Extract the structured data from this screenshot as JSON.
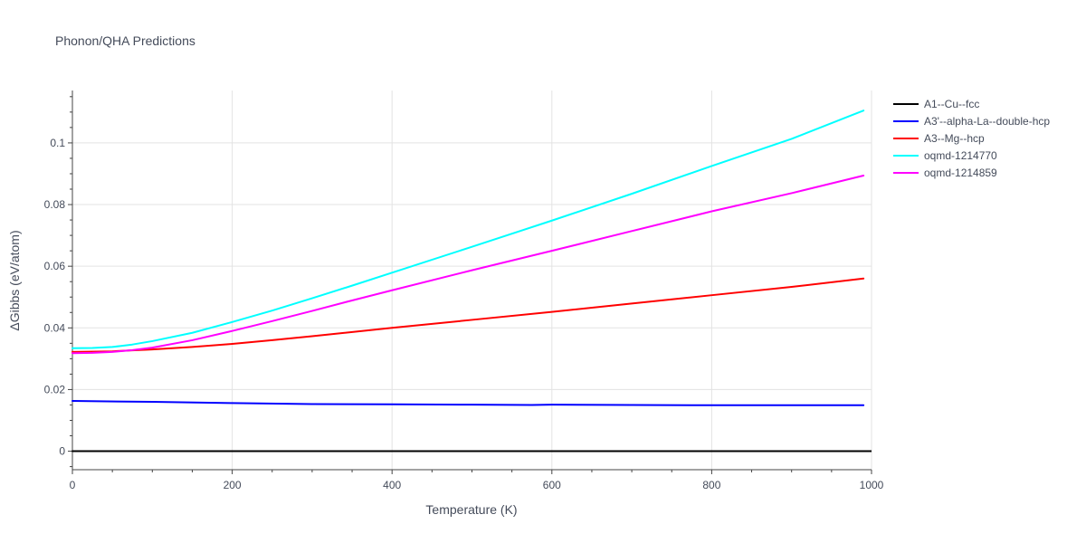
{
  "chart_data": {
    "type": "line",
    "title": "Phonon/QHA Predictions",
    "xlabel": "Temperature (K)",
    "ylabel": "ΔGibbs (eV/atom)",
    "xlim": [
      0,
      1000
    ],
    "ylim": [
      -0.006,
      0.117
    ],
    "x_ticks": [
      0,
      200,
      400,
      600,
      800,
      1000
    ],
    "x_tick_labels": [
      "0",
      "200",
      "400",
      "600",
      "800",
      "1000"
    ],
    "y_ticks": [
      0,
      0.02,
      0.04,
      0.06,
      0.08,
      0.1
    ],
    "y_tick_labels": [
      "0",
      "0.02",
      "0.04",
      "0.06",
      "0.08",
      "0.1"
    ],
    "grid": true,
    "legend_position": "right",
    "series": [
      {
        "name": "A1--Cu--fcc",
        "color": "#000000",
        "x": [
          0,
          100,
          200,
          300,
          400,
          500,
          600,
          700,
          800,
          900,
          990
        ],
        "y": [
          0,
          0,
          0,
          0,
          0,
          0,
          0,
          0,
          0,
          0,
          0
        ]
      },
      {
        "name": "A3'--alpha-La--double-hcp",
        "color": "#0000ff",
        "x": [
          0,
          100,
          200,
          300,
          400,
          500,
          575,
          600,
          700,
          800,
          900,
          990
        ],
        "y": [
          0.0163,
          0.016,
          0.0156,
          0.0153,
          0.0152,
          0.0151,
          0.015,
          0.0151,
          0.015,
          0.0149,
          0.0149,
          0.0149
        ]
      },
      {
        "name": "A3--Mg--hcp",
        "color": "#ff0000",
        "x": [
          0,
          50,
          100,
          150,
          200,
          250,
          300,
          400,
          500,
          600,
          700,
          800,
          900,
          990
        ],
        "y": [
          0.0322,
          0.0324,
          0.033,
          0.0338,
          0.0348,
          0.036,
          0.0373,
          0.04,
          0.0426,
          0.0452,
          0.0479,
          0.0506,
          0.0533,
          0.056
        ]
      },
      {
        "name": "oqmd-1214770",
        "color": "#00ffff",
        "x": [
          0,
          25,
          50,
          75,
          100,
          150,
          200,
          250,
          300,
          350,
          400,
          500,
          600,
          700,
          800,
          900,
          990
        ],
        "y": [
          0.0334,
          0.0335,
          0.0338,
          0.0346,
          0.0357,
          0.0384,
          0.0419,
          0.0456,
          0.0496,
          0.0537,
          0.0579,
          0.0663,
          0.0748,
          0.0835,
          0.0925,
          0.1013,
          0.1105
        ]
      },
      {
        "name": "oqmd-1214859",
        "color": "#ff00ff",
        "x": [
          0,
          25,
          50,
          75,
          100,
          150,
          200,
          250,
          300,
          350,
          400,
          500,
          600,
          700,
          800,
          900,
          990
        ],
        "y": [
          0.0318,
          0.0319,
          0.0322,
          0.0328,
          0.0336,
          0.036,
          0.039,
          0.0422,
          0.0455,
          0.0489,
          0.0522,
          0.0587,
          0.065,
          0.0714,
          0.0778,
          0.0837,
          0.0894
        ]
      }
    ]
  }
}
